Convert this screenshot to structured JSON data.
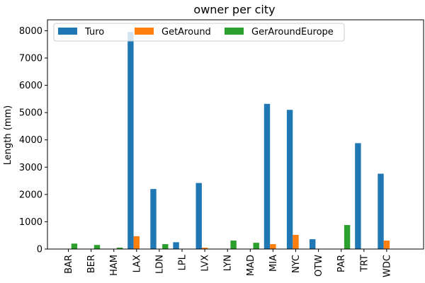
{
  "chart_data": {
    "type": "bar",
    "title": "owner per city",
    "xlabel": "",
    "ylabel": "Length (mm)",
    "ylim": [
      0,
      8400
    ],
    "yticks": [
      0,
      1000,
      2000,
      3000,
      4000,
      5000,
      6000,
      7000,
      8000
    ],
    "grid": false,
    "legend_position": "top-left",
    "categories": [
      "BAR",
      "BER",
      "HAM",
      "LAX",
      "LDN",
      "LPL",
      "LVX",
      "LYN",
      "MAD",
      "MIA",
      "NYC",
      "OTW",
      "PAR",
      "TRT",
      "WDC"
    ],
    "series": [
      {
        "name": "Turo",
        "color": "#1f77b4",
        "values": [
          0,
          0,
          0,
          7950,
          2200,
          250,
          2420,
          0,
          0,
          5320,
          5100,
          360,
          0,
          3880,
          2760
        ]
      },
      {
        "name": "GetAround",
        "color": "#ff7f0e",
        "values": [
          0,
          0,
          0,
          470,
          0,
          0,
          50,
          0,
          0,
          180,
          520,
          0,
          0,
          0,
          310
        ]
      },
      {
        "name": "GerAroundEurope",
        "color": "#2ca02c",
        "values": [
          200,
          150,
          50,
          0,
          180,
          0,
          0,
          310,
          230,
          0,
          0,
          0,
          880,
          0,
          0
        ]
      }
    ]
  }
}
